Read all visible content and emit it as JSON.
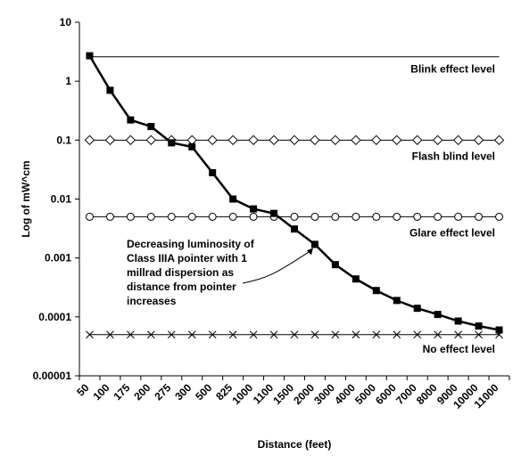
{
  "chart_data": {
    "type": "line",
    "xlabel": "Distance (feet)",
    "ylabel": "Log of mW^cm",
    "y_scale": "log",
    "ylim": [
      1e-05,
      10
    ],
    "y_ticks": [
      "10",
      "1",
      "0.1",
      "0.01",
      "0.001",
      "0.0001",
      "0.00001"
    ],
    "categories": [
      "50",
      "100",
      "175",
      "200",
      "275",
      "300",
      "500",
      "825",
      "1000",
      "1100",
      "1500",
      "2000",
      "3000",
      "4000",
      "5000",
      "6000",
      "7000",
      "8000",
      "9000",
      "10000",
      "11000"
    ],
    "series": [
      {
        "marker": "filled-square",
        "line": "thick-black",
        "values": [
          2.7,
          0.7,
          0.22,
          0.17,
          0.09,
          0.077,
          0.028,
          0.01,
          0.0068,
          0.0057,
          0.0031,
          0.0017,
          0.00077,
          0.00044,
          0.00028,
          0.00019,
          0.00014,
          0.00011,
          8.5e-05,
          7e-05,
          6e-05
        ]
      },
      {
        "marker": "none",
        "line": "thin-black",
        "constant": 2.6,
        "label": "Blink effect level"
      },
      {
        "marker": "open-diamond",
        "line": "thin-black",
        "constant": 0.1,
        "label": "Flash blind level"
      },
      {
        "marker": "open-circle",
        "line": "thin-black",
        "constant": 0.005,
        "label": "Glare effect level"
      },
      {
        "marker": "x",
        "line": "thin-black",
        "constant": 5e-05,
        "label": "No effect level"
      }
    ],
    "annotation": {
      "lines": [
        "Decreasing luminosity of",
        "Class IIIA pointer with 1",
        "millrad dispersion as",
        "distance from pointer",
        "increases"
      ]
    },
    "legend": "none",
    "grid": false
  }
}
